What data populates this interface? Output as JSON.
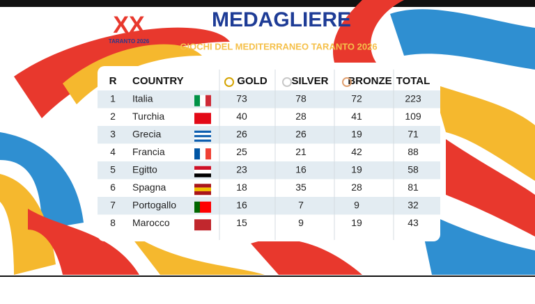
{
  "header": {
    "title": "MEDAGLIERE",
    "subtitle": "GIOCHI DEL MEDITERRANEO TARANTO 2026",
    "logo_text": "TARANTO 2026"
  },
  "table": {
    "columns": [
      "R",
      "COUNTRY",
      "GOLD",
      "SILVER",
      "BRONZE",
      "TOTAL"
    ],
    "rows": [
      [
        "1",
        "Italia",
        "73",
        "78",
        "72",
        "223"
      ],
      [
        "2",
        "Turchia",
        "40",
        "28",
        "41",
        "109"
      ],
      [
        "3",
        "Grecia",
        "26",
        "26",
        "19",
        "71"
      ],
      [
        "4",
        "Francia",
        "25",
        "21",
        "42",
        "88"
      ],
      [
        "5",
        "Egitto",
        "23",
        "16",
        "19",
        "58"
      ],
      [
        "6",
        "Spagna",
        "18",
        "35",
        "28",
        "81"
      ],
      [
        "7",
        "Portogallo",
        "16",
        "7",
        "9",
        "32"
      ],
      [
        "8",
        "Marocco",
        "15",
        "9",
        "19",
        "43"
      ]
    ]
  }
}
